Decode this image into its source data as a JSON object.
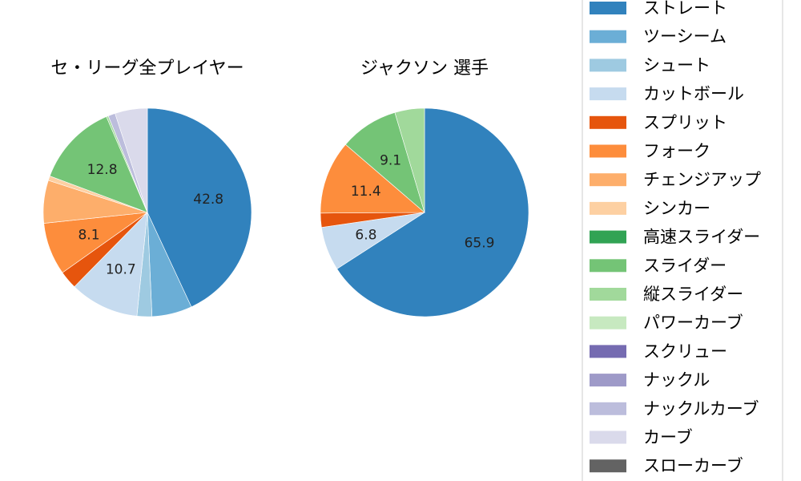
{
  "legend": [
    {
      "label": "ストレート",
      "color": "#3182bd"
    },
    {
      "label": "ツーシーム",
      "color": "#6baed6"
    },
    {
      "label": "シュート",
      "color": "#9ecae1"
    },
    {
      "label": "カットボール",
      "color": "#c6dbef"
    },
    {
      "label": "スプリット",
      "color": "#e6550d"
    },
    {
      "label": "フォーク",
      "color": "#fd8d3c"
    },
    {
      "label": "チェンジアップ",
      "color": "#fdae6b"
    },
    {
      "label": "シンカー",
      "color": "#fdd0a2"
    },
    {
      "label": "高速スライダー",
      "color": "#31a354"
    },
    {
      "label": "スライダー",
      "color": "#74c476"
    },
    {
      "label": "縦スライダー",
      "color": "#a1d99b"
    },
    {
      "label": "パワーカーブ",
      "color": "#c7e9c0"
    },
    {
      "label": "スクリュー",
      "color": "#756bb1"
    },
    {
      "label": "ナックル",
      "color": "#9e9ac8"
    },
    {
      "label": "ナックルカーブ",
      "color": "#bcbddc"
    },
    {
      "label": "カーブ",
      "color": "#dadaeb"
    },
    {
      "label": "スローカーブ",
      "color": "#636363"
    }
  ],
  "chart_data": [
    {
      "type": "pie",
      "title": "セ・リーグ全プレイヤー",
      "start_angle_deg": 90,
      "direction": "clockwise",
      "slices": [
        {
          "label": "ストレート",
          "value": 42.8,
          "text": "42.8"
        },
        {
          "label": "ツーシーム",
          "value": 6.2,
          "text": ""
        },
        {
          "label": "シュート",
          "value": 2.3,
          "text": ""
        },
        {
          "label": "カットボール",
          "value": 10.7,
          "text": "10.7"
        },
        {
          "label": "スプリット",
          "value": 2.8,
          "text": ""
        },
        {
          "label": "フォーク",
          "value": 8.1,
          "text": "8.1"
        },
        {
          "label": "チェンジアップ",
          "value": 6.6,
          "text": ""
        },
        {
          "label": "シンカー",
          "value": 0.7,
          "text": ""
        },
        {
          "label": "スライダー",
          "value": 12.8,
          "text": "12.8"
        },
        {
          "label": "縦スライダー",
          "value": 0.3,
          "text": ""
        },
        {
          "label": "ナックルカーブ",
          "value": 1.1,
          "text": ""
        },
        {
          "label": "カーブ",
          "value": 5.0,
          "text": ""
        }
      ]
    },
    {
      "type": "pie",
      "title": "ジャクソン 選手",
      "start_angle_deg": 90,
      "direction": "clockwise",
      "slices": [
        {
          "label": "ストレート",
          "value": 65.9,
          "text": "65.9"
        },
        {
          "label": "カットボール",
          "value": 6.8,
          "text": "6.8"
        },
        {
          "label": "スプリット",
          "value": 2.2,
          "text": ""
        },
        {
          "label": "フォーク",
          "value": 11.4,
          "text": "11.4"
        },
        {
          "label": "スライダー",
          "value": 9.1,
          "text": "9.1"
        },
        {
          "label": "縦スライダー",
          "value": 4.6,
          "text": ""
        }
      ]
    }
  ]
}
